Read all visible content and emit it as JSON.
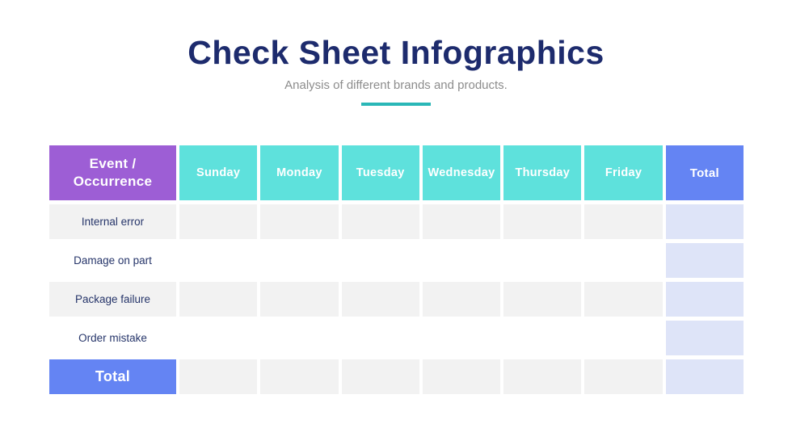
{
  "slide": {
    "title": "Check Sheet Infographics",
    "subtitle": "Analysis of different brands and products."
  },
  "table": {
    "corner_header": "Event / Occurrence",
    "day_headers": [
      "Sunday",
      "Monday",
      "Tuesday",
      "Wednesday",
      "Thursday",
      "Friday"
    ],
    "total_header": "Total",
    "rows": [
      {
        "label": "Internal error",
        "values": [
          "",
          "",
          "",
          "",
          "",
          ""
        ],
        "total": ""
      },
      {
        "label": "Damage on part",
        "values": [
          "",
          "",
          "",
          "",
          "",
          ""
        ],
        "total": ""
      },
      {
        "label": "Package failure",
        "values": [
          "",
          "",
          "",
          "",
          "",
          ""
        ],
        "total": ""
      },
      {
        "label": "Order mistake",
        "values": [
          "",
          "",
          "",
          "",
          "",
          ""
        ],
        "total": ""
      }
    ],
    "footer_row": {
      "label": "Total",
      "values": [
        "",
        "",
        "",
        "",
        "",
        ""
      ],
      "total": ""
    }
  },
  "colors": {
    "title_navy": "#1d2b6d",
    "subtitle_gray": "#8c8c8c",
    "accent_teal_dark": "#2ab7b7",
    "header_purple": "#9d5ed5",
    "header_teal": "#5ee1dc",
    "header_blue": "#6484f3",
    "cell_gray": "#f2f2f2",
    "cell_lavender": "#dee4f8",
    "label_navy": "#26356a"
  }
}
